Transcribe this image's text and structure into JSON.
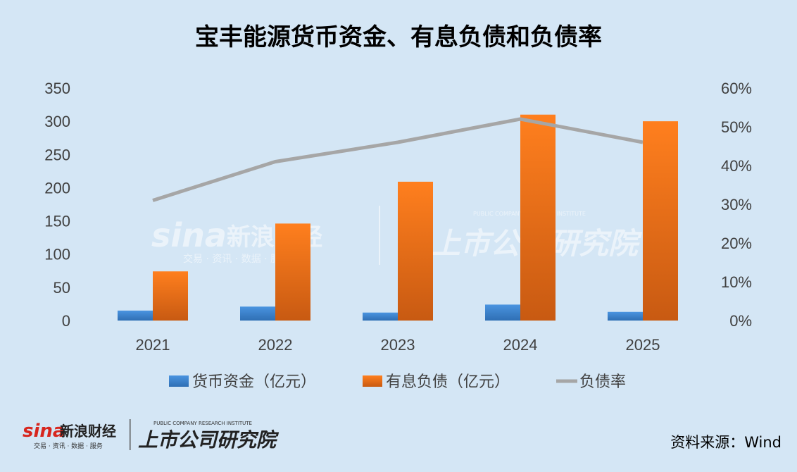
{
  "chart_data": {
    "type": "bar",
    "title": "宝丰能源货币资金、有息负债和负债率",
    "categories": [
      "2021",
      "2022",
      "2023",
      "2024",
      "2025"
    ],
    "series": [
      {
        "name": "货币资金（亿元）",
        "kind": "bar",
        "axis": "left",
        "color": "#3d86d1",
        "values": [
          15,
          21,
          12,
          24,
          13
        ]
      },
      {
        "name": "有息负债（亿元）",
        "kind": "bar",
        "axis": "left",
        "color": "#f0731c",
        "values": [
          74,
          146,
          209,
          310,
          300
        ]
      },
      {
        "name": "负债率",
        "kind": "line",
        "axis": "right",
        "color": "#a6a6a6",
        "values": [
          0.31,
          0.41,
          0.46,
          0.52,
          0.46
        ]
      }
    ],
    "ylim": [
      0,
      350
    ],
    "yticks": [
      "0",
      "50",
      "100",
      "150",
      "200",
      "250",
      "300",
      "350"
    ],
    "y2lim": [
      0,
      0.6
    ],
    "y2ticks": [
      "0%",
      "10%",
      "20%",
      "30%",
      "40%",
      "50%",
      "60%"
    ],
    "grid": false,
    "legend_position": "bottom"
  },
  "source": "资料来源：Wind",
  "watermark": {
    "sina_logo": "sina",
    "brand": "新浪财经",
    "brand_sub": "交易 · 资讯 · 数据 · 服务",
    "institute": "上市公司研究院",
    "institute_en": "PUBLIC COMPANY RESEARCH INSTITUTE"
  },
  "colors": {
    "background": "#d4e6f5",
    "bar_blue": "#3d86d1",
    "bar_orange": "#f0731c",
    "line_gray": "#a6a6a6",
    "text": "#404040"
  }
}
